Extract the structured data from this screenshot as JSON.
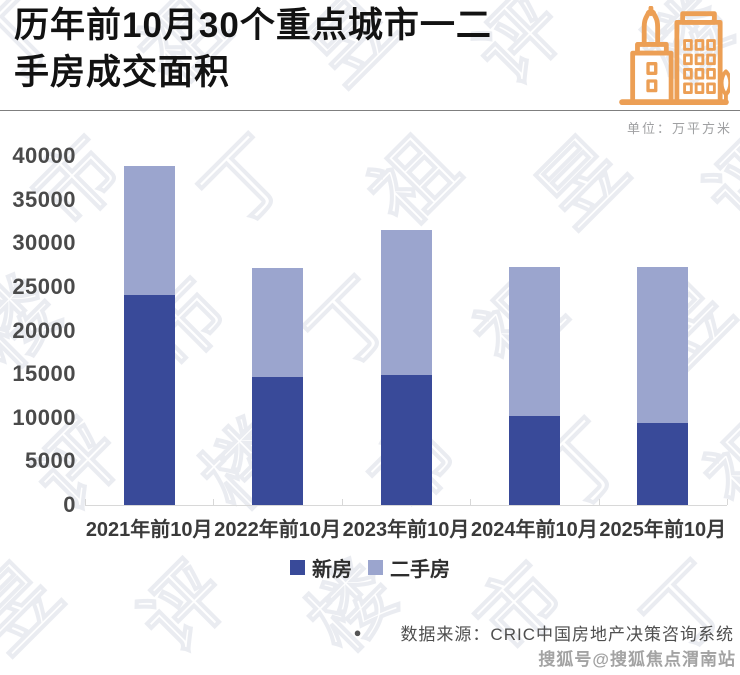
{
  "header": {
    "title_lines": [
      "历年前10月30个重点城市一二",
      "手房成交面积"
    ],
    "icon_name": "city-buildings-icon",
    "icon_color": "#EC9F55"
  },
  "unit_label": "单位：万平方米",
  "chart_data": {
    "type": "bar",
    "stacked": true,
    "title": "历年前10月30个重点城市一二手房成交面积",
    "unit": "万平方米",
    "categories": [
      "2021年前10月",
      "2022年前10月",
      "2023年前10月",
      "2024年前10月",
      "2025年前10月"
    ],
    "series": [
      {
        "name": "新房",
        "color": "#394A99",
        "values": [
          24100,
          14700,
          14900,
          10200,
          9400
        ]
      },
      {
        "name": "二手房",
        "color": "#9BA5CE",
        "values": [
          14800,
          12500,
          16600,
          17100,
          17900
        ]
      }
    ],
    "totals": [
      38900,
      27200,
      31500,
      27300,
      27300
    ],
    "ylim": [
      0,
      40000
    ],
    "ytick_step": 5000,
    "grid": false,
    "legend_position": "bottom"
  },
  "source": {
    "bullet": "●",
    "text": "数据来源：CRIC中国房地产决策咨询系统"
  },
  "footer": {
    "text": "搜狐号@搜狐焦点渭南站"
  },
  "watermark": {
    "chars": [
      "丁",
      "祖",
      "昱",
      "评",
      "楼",
      "市"
    ]
  },
  "colors": {
    "new_home": "#394A99",
    "second_home": "#9BA5CE",
    "axis_line": "#D8D8D8",
    "accent_orange": "#EC9F55"
  }
}
